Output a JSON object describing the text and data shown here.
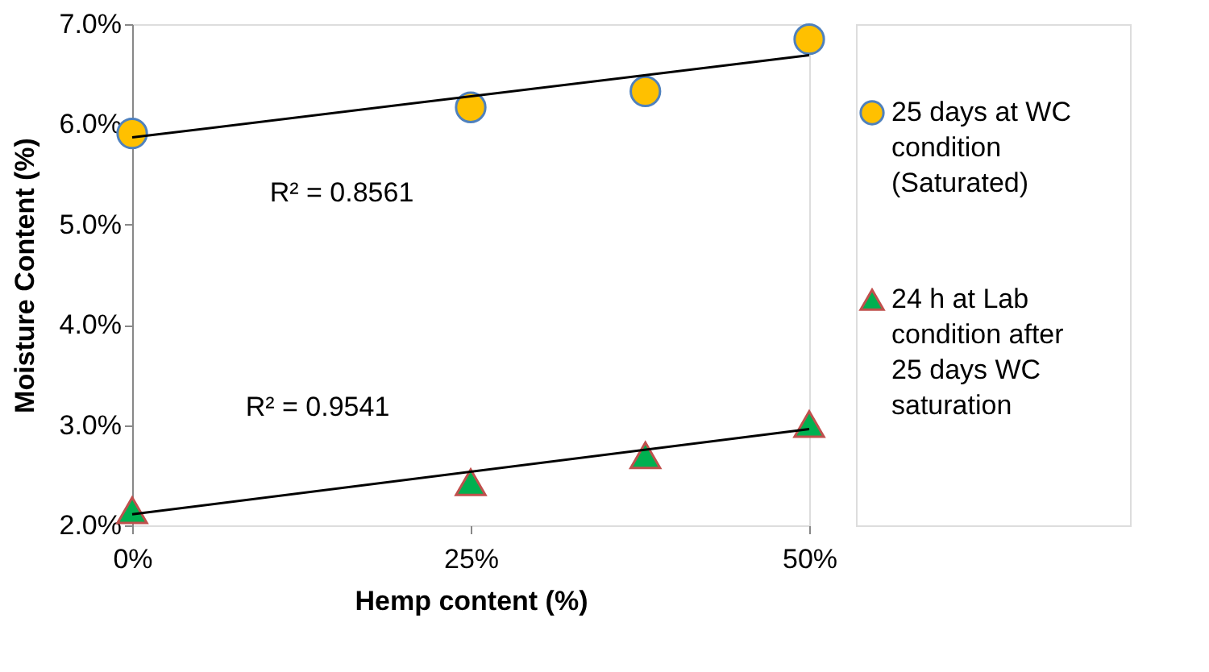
{
  "chart_data": {
    "type": "scatter",
    "xlabel": "Hemp content (%)",
    "ylabel": "Moisture Content (%)",
    "xlim": [
      0,
      50
    ],
    "xticks": [
      {
        "value": 0,
        "label": "0%"
      },
      {
        "value": 25,
        "label": "25%"
      },
      {
        "value": 50,
        "label": "50%"
      }
    ],
    "ylim": [
      2,
      7
    ],
    "yticks": [
      {
        "value": 2,
        "label": "2.0%"
      },
      {
        "value": 3,
        "label": "3.0%"
      },
      {
        "value": 4,
        "label": "4.0%"
      },
      {
        "value": 5,
        "label": "5.0%"
      },
      {
        "value": 6,
        "label": "6.0%"
      },
      {
        "value": 7,
        "label": "7.0%"
      }
    ],
    "grid": false,
    "legend": "right",
    "series": [
      {
        "name": "25 days at WC condition (Saturated)",
        "color": "#ffc000",
        "marker": "circle",
        "x": [
          0,
          25,
          37.9,
          50
        ],
        "values": [
          5.91,
          6.17,
          6.33,
          6.85
        ]
      },
      {
        "name": "24 h at Lab condition after 25 days WC saturation",
        "color": "#00b050",
        "marker": "triangle",
        "x": [
          0,
          25,
          37.9,
          50
        ],
        "values": [
          2.15,
          2.43,
          2.7,
          3.01
        ]
      },
      {
        "type": "line",
        "color": "#000000",
        "marker": "none",
        "x": [
          0,
          50
        ],
        "values": [
          5.87,
          6.69
        ]
      },
      {
        "type": "line",
        "color": "#000000",
        "marker": "none",
        "x": [
          0,
          50
        ],
        "values": [
          2.11,
          2.96
        ]
      }
    ],
    "annotations": [
      "R² = 0.8561",
      "R² = 0.9541"
    ]
  }
}
